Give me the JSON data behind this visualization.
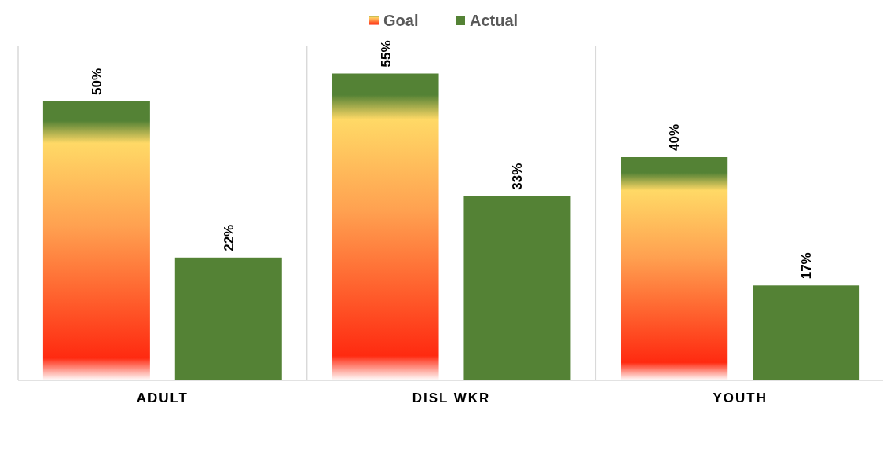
{
  "chart_data": {
    "type": "bar",
    "categories": [
      "ADULT",
      "DISL WKR",
      "YOUTH"
    ],
    "series": [
      {
        "name": "Goal",
        "color": "#ff2a10",
        "values": [
          50,
          55,
          40
        ],
        "value_labels": [
          "50%",
          "55%",
          "40%"
        ]
      },
      {
        "name": "Actual",
        "color": "#548235",
        "values": [
          22,
          33,
          17
        ],
        "value_labels": [
          "22%",
          "33%",
          "17%"
        ]
      }
    ],
    "ylim": [
      0,
      60
    ],
    "tick_labels": "x",
    "legend": "top",
    "grid": false
  }
}
